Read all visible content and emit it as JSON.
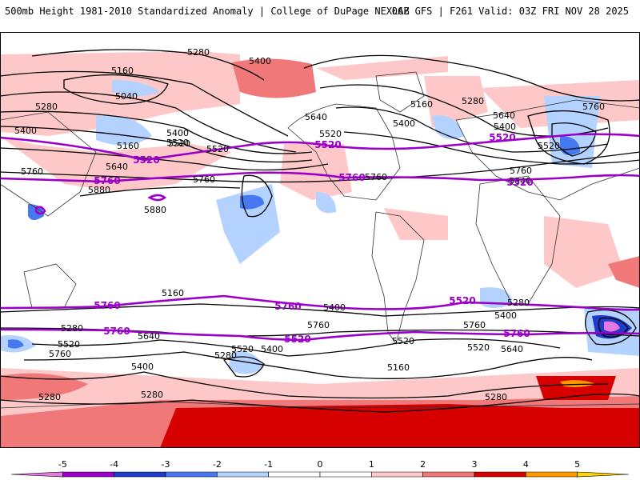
{
  "header": {
    "title": "500mb Height 1981-2010 Standardized Anomaly | College of DuPage NEXLAB",
    "run_info": "06Z GFS | F261 Valid: 03Z FRI NOV 28 2025"
  },
  "map": {
    "contour_labels": [
      "5280",
      "5400",
      "5160",
      "5040",
      "5280",
      "5400",
      "5160",
      "5520",
      "5640",
      "5760",
      "5880",
      "5880",
      "5760",
      "5520",
      "5400",
      "5520",
      "5640",
      "5160",
      "5400",
      "5280",
      "5520",
      "5640",
      "5400",
      "5760",
      "5520",
      "5760",
      "5760",
      "5640",
      "5520",
      "5400",
      "5160",
      "5280",
      "5400",
      "5280",
      "5640",
      "5520",
      "5760",
      "5760",
      "5520",
      "5400",
      "5280",
      "5160",
      "5760",
      "5520",
      "5640",
      "5400",
      "5280",
      "5280",
      "5280"
    ],
    "purple_labels": [
      "5520",
      "5760",
      "5520",
      "5760",
      "5520",
      "5760",
      "5760",
      "5520",
      "5760",
      "5520",
      "5760",
      "5520"
    ],
    "colors": {
      "positive_light": "#ffc8c8",
      "positive_mid": "#f07878",
      "positive_strong": "#d70000",
      "positive_extreme": "#ff9900",
      "negative_light": "#b4d2ff",
      "negative_mid": "#4678f0",
      "negative_strong": "#1e3cc8",
      "contour_line": "#000000",
      "highlight_contour": "#9a00c8"
    }
  },
  "colorbar": {
    "ticks": [
      "-5",
      "-4",
      "-3",
      "-2",
      "-1",
      "0",
      "1",
      "2",
      "3",
      "4",
      "5"
    ],
    "colors": [
      "#e678e6",
      "#9a00c8",
      "#1e3cc8",
      "#4678f0",
      "#b4d2ff",
      "#ffffff",
      "#ffffff",
      "#ffc8c8",
      "#f07878",
      "#d70000",
      "#ff9900",
      "#ffd200"
    ]
  }
}
